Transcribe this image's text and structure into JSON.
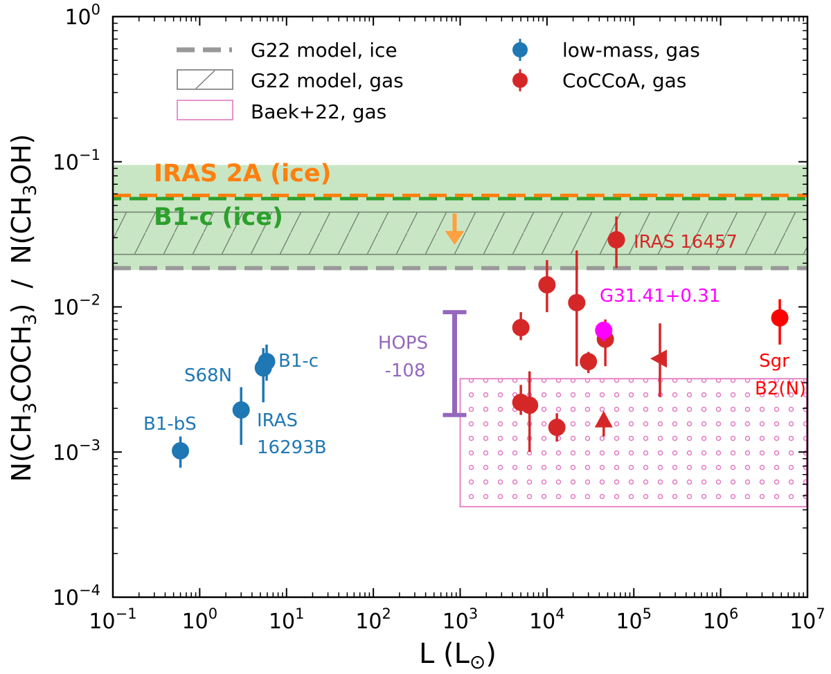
{
  "chart_data": {
    "type": "scatter",
    "xscale": "log",
    "yscale": "log",
    "xlim": [
      0.1,
      10000000
    ],
    "ylim": [
      0.0001,
      1
    ],
    "xlabel": {
      "base": "L (L",
      "sub": "⊙",
      "close": ")"
    },
    "ylabel": {
      "numerator": "N(CH",
      "num_sub1": "3",
      "num_mid": "COCH",
      "num_sub2": "3",
      "num_close": ")",
      "sep": "/",
      "denominator": "N(CH",
      "den_sub": "3",
      "den_close": "OH)"
    },
    "xticks": [
      {
        "value": 0.1,
        "base": "10",
        "exp": "−1"
      },
      {
        "value": 1,
        "base": "10",
        "exp": "0"
      },
      {
        "value": 10,
        "base": "10",
        "exp": "1"
      },
      {
        "value": 100,
        "base": "10",
        "exp": "2"
      },
      {
        "value": 1000,
        "base": "10",
        "exp": "3"
      },
      {
        "value": 10000,
        "base": "10",
        "exp": "4"
      },
      {
        "value": 100000,
        "base": "10",
        "exp": "5"
      },
      {
        "value": 1000000,
        "base": "10",
        "exp": "6"
      },
      {
        "value": 10000000,
        "base": "10",
        "exp": "7"
      }
    ],
    "yticks": [
      {
        "value": 0.0001,
        "base": "10",
        "exp": "−4"
      },
      {
        "value": 0.001,
        "base": "10",
        "exp": "−3"
      },
      {
        "value": 0.01,
        "base": "10",
        "exp": "−2"
      },
      {
        "value": 0.1,
        "base": "10",
        "exp": "−1"
      },
      {
        "value": 1,
        "base": "10",
        "exp": "0"
      }
    ],
    "legend": {
      "placement": "top",
      "entries": [
        {
          "label": "G22 model, ice",
          "kind": "dashed-line",
          "color": "#999999"
        },
        {
          "label": "G22 model, gas",
          "kind": "hatched-box",
          "color": "#777777"
        },
        {
          "label": "Baek+22, gas",
          "kind": "dotted-box",
          "color": "#e377c2"
        },
        {
          "label": "low-mass, gas",
          "kind": "marker",
          "color": "#1f77b4"
        },
        {
          "label": "CoCCoA, gas",
          "kind": "marker",
          "color": "#d62728"
        }
      ]
    },
    "ice_band": {
      "ymin": 0.018,
      "ymax": 0.095,
      "color": "#c8e6c4"
    },
    "g22_gas_band": {
      "ymin": 0.023,
      "ymax": 0.045,
      "color": "#666666"
    },
    "g22_ice_line": {
      "y": 0.0185,
      "color": "#999999"
    },
    "iras2a_ice": {
      "y": 0.058,
      "label": "IRAS 2A (ice)",
      "color": "#ff7f0e"
    },
    "b1c_ice": {
      "y": 0.057,
      "label": "B1-c (ice)",
      "color": "#2ca02c"
    },
    "upper_limit_arrow": {
      "x": 1000,
      "y_from": 0.044,
      "y_to": 0.028,
      "color": "#ffa040"
    },
    "baek_box": {
      "xmin": 1000,
      "xmax": 10000000,
      "ymin": 0.00042,
      "ymax": 0.0032,
      "color": "#e377c2"
    },
    "hops108": {
      "x": 1000,
      "ymin": 0.0018,
      "ymax": 0.0092,
      "label_line1": "HOPS",
      "label_line2": "-108",
      "color": "#9467bd"
    },
    "low_mass_series": {
      "name": "low-mass, gas",
      "color": "#1f77b4",
      "points": [
        {
          "x": 0.6,
          "y": 0.00102,
          "ylo": 0.00078,
          "yhi": 0.00128
        },
        {
          "x": 3.0,
          "y": 0.00195,
          "ylo": 0.00112,
          "yhi": 0.0028
        },
        {
          "x": 5.4,
          "y": 0.0038,
          "ylo": 0.0022,
          "yhi": 0.0052
        },
        {
          "x": 5.9,
          "y": 0.0042,
          "ylo": 0.0031,
          "yhi": 0.0055
        }
      ],
      "labels": [
        {
          "text": "B1-bS",
          "x": 0.6,
          "y": 0.00102
        },
        {
          "text": "S68N",
          "x": 5.4,
          "y": 0.0038
        },
        {
          "text": "B1-c",
          "x": 5.9,
          "y": 0.0042
        },
        {
          "text": "IRAS",
          "x": 3.0,
          "y": 0.00195
        },
        {
          "text": "16293B",
          "x": 3.0,
          "y": 0.00195
        }
      ]
    },
    "cocco_series": {
      "name": "CoCCoA, gas",
      "color": "#d62728",
      "points": [
        {
          "x": 5000,
          "y": 0.0072,
          "ylo": 0.0059,
          "yhi": 0.0092,
          "marker": "circle"
        },
        {
          "x": 5000,
          "y": 0.0022,
          "ylo": 0.0018,
          "yhi": 0.0029,
          "marker": "circle"
        },
        {
          "x": 6300,
          "y": 0.0021,
          "ylo": 0.001,
          "yhi": 0.0036,
          "marker": "circle"
        },
        {
          "x": 10000,
          "y": 0.0142,
          "ylo": 0.0092,
          "yhi": 0.021,
          "marker": "circle"
        },
        {
          "x": 13000,
          "y": 0.00148,
          "ylo": 0.00118,
          "yhi": 0.00185,
          "marker": "circle"
        },
        {
          "x": 22000,
          "y": 0.0107,
          "ylo": 0.0039,
          "yhi": 0.0245,
          "marker": "circle"
        },
        {
          "x": 30000,
          "y": 0.0042,
          "ylo": 0.0035,
          "yhi": 0.0049,
          "marker": "circle"
        },
        {
          "x": 47000,
          "y": 0.006,
          "ylo": 0.0039,
          "yhi": 0.0082,
          "marker": "circle"
        },
        {
          "x": 63000,
          "y": 0.029,
          "ylo": 0.0185,
          "yhi": 0.042,
          "marker": "circle"
        },
        {
          "x": 45000,
          "y": 0.00165,
          "ylo": 0.00128,
          "yhi": 0.00185,
          "marker": "triangle-up"
        },
        {
          "x": 200000,
          "y": 0.0044,
          "ylo": 0.0024,
          "yhi": 0.0077,
          "marker": "triangle-left"
        }
      ],
      "labels": [
        {
          "text": "IRAS 16457",
          "x": 63000,
          "y": 0.029
        }
      ]
    },
    "g31": {
      "x": 45000,
      "y": 0.0069,
      "ylo": 0.0058,
      "yhi": 0.0078,
      "label": "G31.41+0.31",
      "color": "#ff00ff"
    },
    "sgrb2": {
      "x": 4800000,
      "y": 0.0084,
      "ylo": 0.0055,
      "yhi": 0.0113,
      "label_line1": "Sgr",
      "label_line2": "B2(N)",
      "color": "#ff0000"
    }
  }
}
